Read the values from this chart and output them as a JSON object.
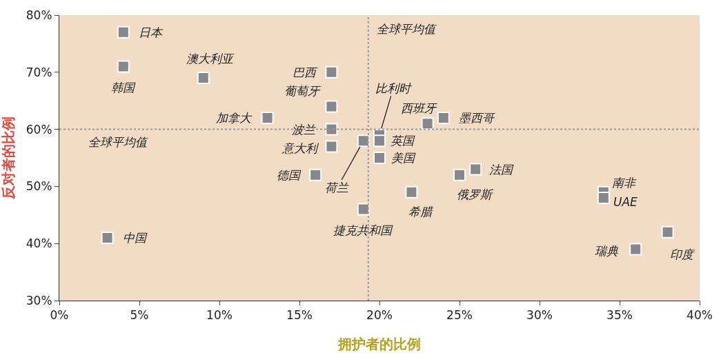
{
  "chart_data": {
    "type": "scatter",
    "xlabel": "拥护者的比例",
    "ylabel": "反对者的比例",
    "marker": "square",
    "xlim": [
      0,
      40
    ],
    "ylim": [
      30,
      80
    ],
    "xticks": [
      {
        "value": 0,
        "label": "0%"
      },
      {
        "value": 5,
        "label": "5%"
      },
      {
        "value": 10,
        "label": "10%"
      },
      {
        "value": 15,
        "label": "15%"
      },
      {
        "value": 20,
        "label": "20%"
      },
      {
        "value": 25,
        "label": "25%"
      },
      {
        "value": 30,
        "label": "30%"
      },
      {
        "value": 35,
        "label": "35%"
      },
      {
        "value": 40,
        "label": "40%"
      }
    ],
    "yticks": [
      {
        "value": 30,
        "label": "30%"
      },
      {
        "value": 40,
        "label": "40%"
      },
      {
        "value": 50,
        "label": "50%"
      },
      {
        "value": 60,
        "label": "60%"
      },
      {
        "value": 70,
        "label": "70%"
      },
      {
        "value": 80,
        "label": "80%"
      }
    ],
    "series": [
      {
        "color": "#87878c",
        "x": [
          4,
          4,
          9,
          17,
          17,
          13,
          17,
          17,
          16,
          19,
          20,
          20,
          23,
          24,
          20,
          19,
          22,
          25,
          26,
          34,
          34,
          36,
          38,
          3
        ],
        "values": [
          77,
          71,
          69,
          70,
          64,
          62,
          60,
          57,
          52,
          58,
          59,
          58,
          61,
          62,
          55,
          46,
          49,
          52,
          53,
          49,
          48,
          39,
          42,
          41
        ]
      }
    ],
    "ref_lines": [
      {
        "axis": "x",
        "value": 19.3,
        "label": "全球平均值",
        "color": "#999999",
        "line_style": "dotted"
      },
      {
        "axis": "y",
        "value": 60,
        "label": "全球平均值",
        "color": "#999999",
        "line_style": "dotted"
      }
    ],
    "annotations": [
      {
        "text": "日本",
        "x": 4,
        "y": 77
      },
      {
        "text": "韩国",
        "x": 4,
        "y": 71
      },
      {
        "text": "澳大利亚",
        "x": 9,
        "y": 69
      },
      {
        "text": "巴西",
        "x": 17,
        "y": 70
      },
      {
        "text": "葡萄牙",
        "x": 17,
        "y": 64
      },
      {
        "text": "加拿大",
        "x": 13,
        "y": 62
      },
      {
        "text": "波兰",
        "x": 17,
        "y": 60
      },
      {
        "text": "意大利",
        "x": 17,
        "y": 57
      },
      {
        "text": "德国",
        "x": 16,
        "y": 52
      },
      {
        "text": "荷兰",
        "x": 19,
        "y": 58
      },
      {
        "text": "比利时",
        "x": 20,
        "y": 59
      },
      {
        "text": "英国",
        "x": 20,
        "y": 58
      },
      {
        "text": "西班牙",
        "x": 23,
        "y": 61
      },
      {
        "text": "墨西哥",
        "x": 24,
        "y": 62
      },
      {
        "text": "美国",
        "x": 20,
        "y": 55
      },
      {
        "text": "捷克共和国",
        "x": 19,
        "y": 46
      },
      {
        "text": "希腊",
        "x": 22,
        "y": 49
      },
      {
        "text": "俄罗斯",
        "x": 25,
        "y": 52
      },
      {
        "text": "法国",
        "x": 26,
        "y": 53
      },
      {
        "text": "南非",
        "x": 34,
        "y": 49
      },
      {
        "text": "UAE",
        "x": 34,
        "y": 48
      },
      {
        "text": "瑞典",
        "x": 36,
        "y": 39
      },
      {
        "text": "印度",
        "x": 38,
        "y": 42
      },
      {
        "text": "中国",
        "x": 3,
        "y": 41
      }
    ]
  }
}
